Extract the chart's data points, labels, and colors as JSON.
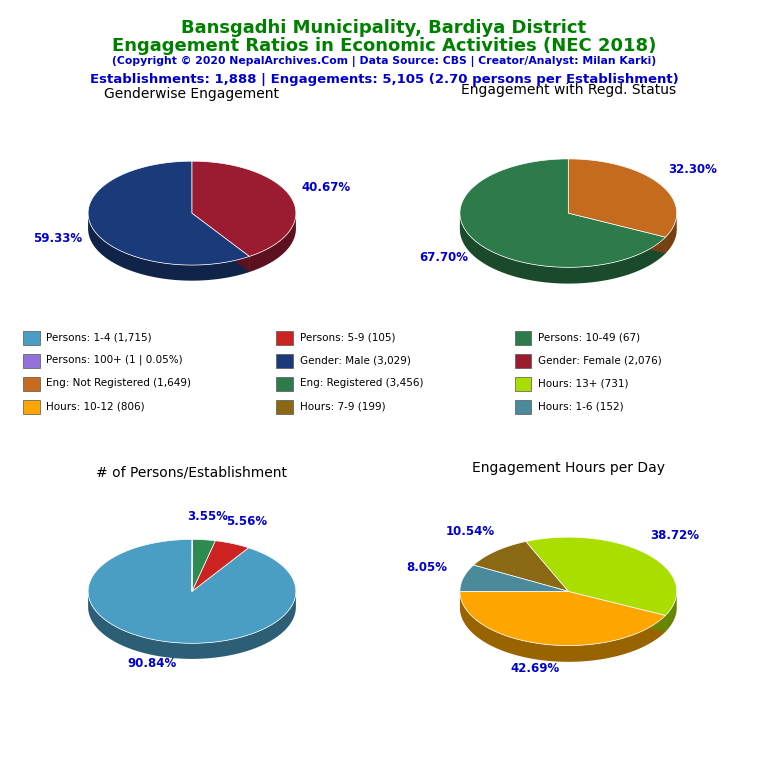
{
  "title_line1": "Bansgadhi Municipality, Bardiya District",
  "title_line2": "Engagement Ratios in Economic Activities (NEC 2018)",
  "subtitle": "(Copyright © 2020 NepalArchives.Com | Data Source: CBS | Creator/Analyst: Milan Karki)",
  "stats_line": "Establishments: 1,888 | Engagements: 5,105 (2.70 persons per Establishment)",
  "title_color": "#008000",
  "subtitle_color": "#0000CD",
  "stats_color": "#0000CD",
  "pie1_title": "Genderwise Engagement",
  "pie1_values": [
    59.33,
    40.67
  ],
  "pie1_colors": [
    "#1A3A7A",
    "#9B1B30"
  ],
  "pie1_labels": [
    "59.33%",
    "40.67%"
  ],
  "pie1_startangle": 90,
  "pie2_title": "Engagement with Regd. Status",
  "pie2_values": [
    67.7,
    32.3
  ],
  "pie2_colors": [
    "#2D7A4A",
    "#C46B20"
  ],
  "pie2_labels": [
    "67.70%",
    "32.30%"
  ],
  "pie2_startangle": 90,
  "pie3_title": "# of Persons/Establishment",
  "pie3_values": [
    90.84,
    5.56,
    3.55,
    0.05
  ],
  "pie3_colors": [
    "#4A9EC4",
    "#CC2222",
    "#2D8A50",
    "#9370DB"
  ],
  "pie3_labels": [
    "90.84%",
    "5.56%",
    "3.55%",
    ""
  ],
  "pie3_startangle": 90,
  "pie4_title": "Engagement Hours per Day",
  "pie4_values": [
    42.69,
    38.72,
    10.54,
    8.05
  ],
  "pie4_colors": [
    "#FFA500",
    "#AADD00",
    "#8B6914",
    "#4A8A9A"
  ],
  "pie4_labels": [
    "42.69%",
    "38.72%",
    "10.54%",
    "8.05%"
  ],
  "pie4_startangle": 180,
  "legend_items": [
    {
      "label": "Persons: 1-4 (1,715)",
      "color": "#4A9EC4"
    },
    {
      "label": "Persons: 5-9 (105)",
      "color": "#CC2222"
    },
    {
      "label": "Persons: 10-49 (67)",
      "color": "#2D7A4A"
    },
    {
      "label": "Persons: 100+ (1 | 0.05%)",
      "color": "#9370DB"
    },
    {
      "label": "Gender: Male (3,029)",
      "color": "#1A3A7A"
    },
    {
      "label": "Gender: Female (2,076)",
      "color": "#9B1B30"
    },
    {
      "label": "Eng: Not Registered (1,649)",
      "color": "#C46B20"
    },
    {
      "label": "Eng: Registered (3,456)",
      "color": "#2D7A4A"
    },
    {
      "label": "Hours: 13+ (731)",
      "color": "#AADD00"
    },
    {
      "label": "Hours: 10-12 (806)",
      "color": "#FFA500"
    },
    {
      "label": "Hours: 7-9 (199)",
      "color": "#8B6914"
    },
    {
      "label": "Hours: 1-6 (152)",
      "color": "#4A8A9A"
    }
  ],
  "label_color": "#0000CD"
}
